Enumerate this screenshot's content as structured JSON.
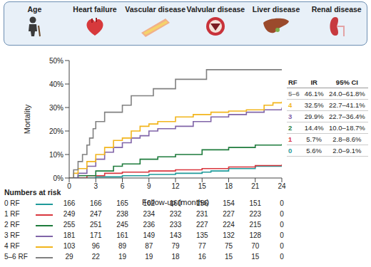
{
  "header": {
    "items": [
      "Age",
      "Heart failure",
      "Vascular disease",
      "Valvular disease",
      "Liver disease",
      "Renal disease"
    ]
  },
  "chart_data": {
    "type": "line",
    "x_label": "Follow-up (months)",
    "y_label": "Mortality",
    "xlim": [
      0,
      24
    ],
    "xticks": [
      0,
      3,
      6,
      9,
      12,
      15,
      18,
      21,
      24
    ],
    "ylim": [
      0,
      50
    ],
    "yticks": [
      {
        "value": 0,
        "label": "0%"
      },
      {
        "value": 10,
        "label": "10%"
      },
      {
        "value": 20,
        "label": "20%"
      },
      {
        "value": 30,
        "label": "30%"
      },
      {
        "value": 40,
        "label": "40%"
      },
      {
        "value": 50,
        "label": "50%"
      }
    ],
    "grid": false,
    "series": [
      {
        "name": "0 RF",
        "color": "#1f9a9a",
        "line_style": "step",
        "x": [
          0,
          3,
          6,
          9,
          12,
          15,
          16,
          18,
          21,
          24
        ],
        "values": [
          0,
          0.5,
          1,
          1.5,
          2,
          2.5,
          3,
          4,
          5,
          5.6
        ]
      },
      {
        "name": "1 RF",
        "color": "#d9363e",
        "line_style": "step",
        "x": [
          0,
          2,
          4,
          6,
          9,
          12,
          15,
          18,
          21,
          24
        ],
        "values": [
          0,
          1,
          2,
          2.5,
          3,
          3.5,
          4,
          4.7,
          5.3,
          5.7
        ]
      },
      {
        "name": "2 RF",
        "color": "#1e7b3c",
        "line_style": "step",
        "x": [
          0,
          1,
          3,
          5,
          6,
          8,
          10,
          12,
          15,
          18,
          21,
          24
        ],
        "values": [
          0,
          1,
          3,
          5,
          6,
          8,
          9,
          10,
          12,
          13,
          14,
          14.4
        ]
      },
      {
        "name": "3 RF",
        "color": "#8064a8",
        "line_style": "step",
        "x": [
          0,
          1,
          2,
          3,
          4,
          5,
          6,
          7,
          8,
          9,
          10,
          12,
          14,
          16,
          18,
          20,
          22,
          24
        ],
        "values": [
          0,
          2,
          5,
          8,
          11,
          13,
          15,
          17,
          18,
          20,
          21,
          22,
          24,
          26,
          27,
          28,
          29,
          29.9
        ]
      },
      {
        "name": "4 RF",
        "color": "#f2b51c",
        "line_style": "step",
        "x": [
          0,
          0.5,
          1,
          2,
          3,
          4,
          5,
          6,
          7,
          8,
          9,
          10,
          12,
          14,
          16,
          18,
          20,
          22,
          23,
          24
        ],
        "values": [
          0,
          2,
          4,
          7,
          10,
          13,
          16,
          17,
          20,
          22,
          23,
          24,
          26,
          27,
          28,
          28.5,
          29,
          31,
          32,
          32.5
        ]
      },
      {
        "name": "5–6 RF",
        "color": "#808080",
        "line_style": "step",
        "x": [
          0,
          0.5,
          1,
          1.5,
          2,
          2.3,
          2.7,
          3,
          4,
          6,
          7,
          9.5,
          12,
          15.5,
          24
        ],
        "values": [
          0,
          3.5,
          7,
          10,
          14,
          17,
          21,
          24,
          28,
          31,
          35,
          38,
          42,
          46.1,
          46.1
        ]
      }
    ]
  },
  "rate_table": {
    "columns": [
      "RF",
      "IR",
      "95% CI"
    ],
    "rows": [
      {
        "rf": "5–6",
        "ir": "46.1%",
        "ci": "24.0–61.8%",
        "color": "#808080"
      },
      {
        "rf": "4",
        "ir": "32.5%",
        "ci": "22.7–41.1%",
        "color": "#f2b51c"
      },
      {
        "rf": "3",
        "ir": "29.9%",
        "ci": "22.7–36.4%",
        "color": "#8064a8"
      },
      {
        "rf": "2",
        "ir": "14.4%",
        "ci": "10.0–18.7%",
        "color": "#1e7b3c"
      },
      {
        "rf": "1",
        "ir": "5.7%",
        "ci": "2.8–8.6%",
        "color": "#d9363e"
      },
      {
        "rf": "0",
        "ir": "5.6%",
        "ci": "2.0–9.1%",
        "color": "#1f9a9a"
      }
    ]
  },
  "at_risk": {
    "title": "Numbers at risk",
    "x": [
      0,
      3,
      6,
      9,
      12,
      15,
      18,
      21,
      24
    ],
    "rows": [
      {
        "label": "0 RF",
        "color": "#1f9a9a",
        "values": [
          166,
          166,
          165,
          162,
          160,
          156,
          154,
          151,
          0
        ]
      },
      {
        "label": "1 RF",
        "color": "#d9363e",
        "values": [
          249,
          247,
          238,
          234,
          232,
          231,
          227,
          223,
          0
        ]
      },
      {
        "label": "2 RF",
        "color": "#1e7b3c",
        "values": [
          255,
          251,
          245,
          236,
          233,
          227,
          224,
          215,
          0
        ]
      },
      {
        "label": "3 RF",
        "color": "#8064a8",
        "values": [
          181,
          171,
          161,
          149,
          143,
          135,
          132,
          128,
          0
        ]
      },
      {
        "label": "4 RF",
        "color": "#f2b51c",
        "values": [
          103,
          96,
          89,
          87,
          79,
          77,
          75,
          70,
          0
        ]
      },
      {
        "label": "5–6 RF",
        "color": "#808080",
        "values": [
          29,
          22,
          19,
          19,
          18,
          16,
          15,
          15,
          0
        ]
      }
    ]
  }
}
